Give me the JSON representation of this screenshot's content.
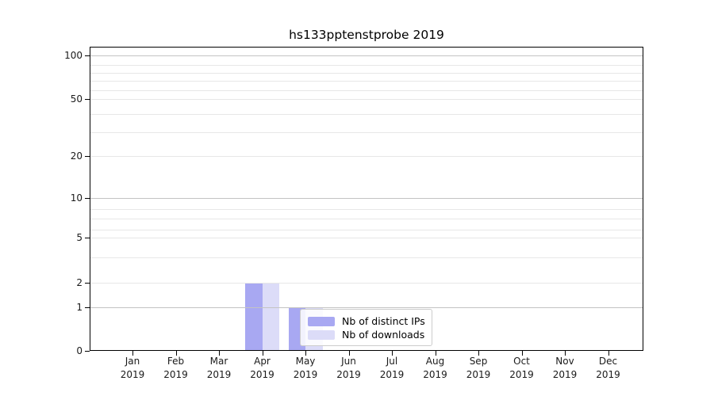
{
  "chart_data": {
    "type": "bar",
    "title": "hs133pptenstprobe 2019",
    "categories": [
      "Jan 2019",
      "Feb 2019",
      "Mar 2019",
      "Apr 2019",
      "May 2019",
      "Jun 2019",
      "Jul 2019",
      "Aug 2019",
      "Sep 2019",
      "Oct 2019",
      "Nov 2019",
      "Dec 2019"
    ],
    "series": [
      {
        "name": "Nb of distinct IPs",
        "color": "#a8a8f2",
        "values": [
          0,
          0,
          0,
          2,
          1,
          0,
          0,
          0,
          0,
          0,
          0,
          0
        ]
      },
      {
        "name": "Nb of downloads",
        "color": "#dcdcf8",
        "values": [
          0,
          0,
          0,
          2,
          1,
          0,
          0,
          0,
          0,
          0,
          0,
          0
        ]
      }
    ],
    "xlabel": "",
    "ylabel": "",
    "y_ticks": [
      0,
      1,
      2,
      5,
      10,
      20,
      50,
      100
    ],
    "ylim": [
      0,
      115
    ],
    "y_scale": "log-like (linear segment between 0 and 1)",
    "grid": true,
    "legend": {
      "position": "inside lower-center",
      "entries": [
        "Nb of distinct IPs",
        "Nb of downloads"
      ]
    }
  },
  "colors": {
    "background": "#ffffff",
    "spine": "#000000",
    "grid_major": "#c3c3c3",
    "grid_minor": "#e7e7e7",
    "text": "#1a1a1a",
    "legend_border": "#cccccc"
  }
}
